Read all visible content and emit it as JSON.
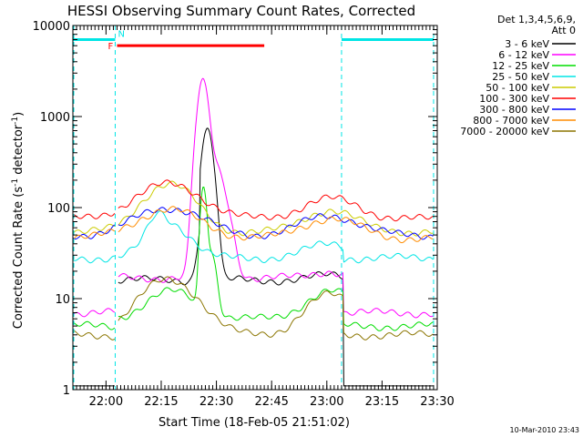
{
  "chart_data": {
    "type": "line",
    "title": "HESSI Observing Summary Count Rates, Corrected",
    "xlabel": "Start Time (18-Feb-05 21:51:02)",
    "ylabel": "Corrected Count Rate (s⁻¹ detector⁻¹)",
    "ylabel_main": "Corrected Count Rate (s",
    "ylabel_sup1": "-1",
    "ylabel_mid": " detector",
    "ylabel_sup2": "-1",
    "ylabel_end": ")",
    "x_range_min": [
      0,
      99
    ],
    "x_ticks": [
      {
        "label": "22:00",
        "min": 9
      },
      {
        "label": "22:15",
        "min": 24
      },
      {
        "label": "22:30",
        "min": 39
      },
      {
        "label": "22:45",
        "min": 54
      },
      {
        "label": "23:00",
        "min": 69
      },
      {
        "label": "23:15",
        "min": 84
      },
      {
        "label": "23:30",
        "min": 99
      }
    ],
    "y_scale": "log",
    "y_range": [
      1,
      10000
    ],
    "y_ticks": [
      "1",
      "10",
      "100",
      "1000",
      "10000"
    ],
    "legend_header": [
      "Det 1,3,4,5,6,9,",
      "Att 0"
    ],
    "legend_position": "right",
    "series": [
      {
        "name": "3 - 6 keV",
        "color": "#000000"
      },
      {
        "name": "6 - 12 keV",
        "color": "#ff00ff"
      },
      {
        "name": "12 - 25 keV",
        "color": "#00dd00"
      },
      {
        "name": "25 - 50 keV",
        "color": "#00e5e5"
      },
      {
        "name": "50 - 100 keV",
        "color": "#cccc00"
      },
      {
        "name": "100 - 300 keV",
        "color": "#ff0000"
      },
      {
        "name": "300 - 800 keV",
        "color": "#0000ff"
      },
      {
        "name": "800 - 7000 keV",
        "color": "#ff8c00"
      },
      {
        "name": "7000 - 20000 keV",
        "color": "#8b7500"
      }
    ],
    "flags": [
      {
        "label": "F",
        "color": "#ff0000",
        "start_min": 12,
        "end_min": 52,
        "level": 6000
      },
      {
        "label": "N",
        "color": "#00e5e5",
        "start_min": 0,
        "end_min": 11.5,
        "level": 7000
      },
      {
        "label": "",
        "color": "#00e5e5",
        "start_min": 73,
        "end_min": 98,
        "level": 7000
      }
    ],
    "night_markers_min": [
      0,
      11.5,
      73,
      98
    ],
    "timestamp": "10-Mar-2010 23:43"
  }
}
